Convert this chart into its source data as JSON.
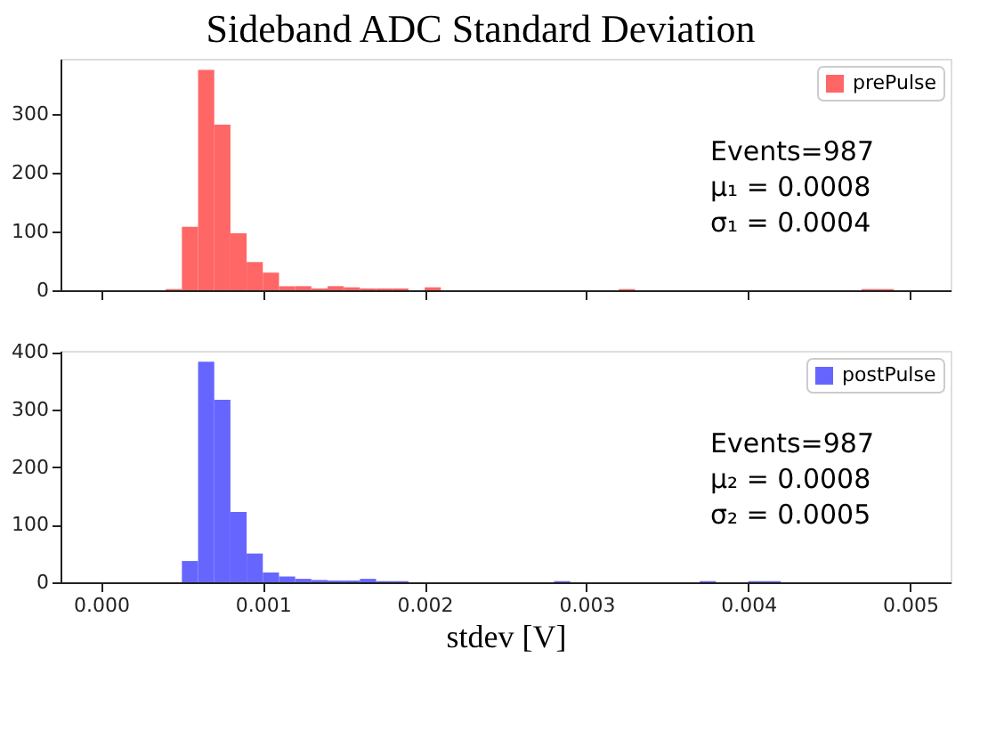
{
  "chart_data": [
    {
      "type": "histogram",
      "title": "Sideband ADC Standard Deviation",
      "bins": [
        0.0,
        0.0001,
        0.0002,
        0.0003,
        0.0004,
        0.0005,
        0.0006,
        0.0007,
        0.0008,
        0.0009,
        0.001,
        0.0011,
        0.0012,
        0.0013,
        0.0014,
        0.0015,
        0.0016,
        0.0017,
        0.0018,
        0.0019,
        0.002,
        0.0021,
        0.0022,
        0.0023,
        0.0024,
        0.0025,
        0.0026,
        0.0027,
        0.0028,
        0.0029,
        0.003,
        0.0031,
        0.0032,
        0.0033,
        0.0034,
        0.0035,
        0.0036,
        0.0037,
        0.0038,
        0.0039,
        0.004,
        0.0041,
        0.0042,
        0.0043,
        0.0044,
        0.0045,
        0.0046,
        0.0047,
        0.0048,
        0.0049,
        0.005
      ],
      "series": [
        {
          "name": "prePulse",
          "color": "#ff6666",
          "values": [
            0,
            0,
            0,
            0,
            2,
            108,
            375,
            282,
            97,
            48,
            30,
            7,
            7,
            3,
            7,
            5,
            3,
            3,
            3,
            0,
            5,
            0,
            0,
            0,
            0,
            0,
            0,
            0,
            0,
            0,
            0,
            0,
            2,
            0,
            0,
            0,
            0,
            0,
            0,
            0,
            0,
            0,
            0,
            0,
            0,
            0,
            0,
            2,
            2,
            0
          ]
        }
      ],
      "xlim": [
        -0.00025,
        0.00525
      ],
      "xticks": [
        {
          "value": 0.0,
          "label": null
        },
        {
          "value": 0.001,
          "label": null
        },
        {
          "value": 0.002,
          "label": null
        },
        {
          "value": 0.003,
          "label": null
        },
        {
          "value": 0.004,
          "label": null
        },
        {
          "value": 0.005,
          "label": null
        }
      ],
      "ylim": [
        0,
        394
      ],
      "yticks": [
        0,
        100,
        200,
        300
      ],
      "tick_labels": "y",
      "legend": "top right",
      "grid": false,
      "annotations": [
        "Events=987",
        "μ₁ = 0.0008",
        "σ₁ = 0.0004"
      ]
    },
    {
      "type": "histogram",
      "xlabel": "stdev [V]",
      "bins": [
        0.0,
        0.0001,
        0.0002,
        0.0003,
        0.0004,
        0.0005,
        0.0006,
        0.0007,
        0.0008,
        0.0009,
        0.001,
        0.0011,
        0.0012,
        0.0013,
        0.0014,
        0.0015,
        0.0016,
        0.0017,
        0.0018,
        0.0019,
        0.002,
        0.0021,
        0.0022,
        0.0023,
        0.0024,
        0.0025,
        0.0026,
        0.0027,
        0.0028,
        0.0029,
        0.003,
        0.0031,
        0.0032,
        0.0033,
        0.0034,
        0.0035,
        0.0036,
        0.0037,
        0.0038,
        0.0039,
        0.004,
        0.0041,
        0.0042,
        0.0043,
        0.0044,
        0.0045,
        0.0046,
        0.0047,
        0.0048,
        0.0049,
        0.005
      ],
      "series": [
        {
          "name": "postPulse",
          "color": "#6666ff",
          "values": [
            0,
            0,
            0,
            0,
            0,
            37,
            383,
            317,
            122,
            50,
            17,
            10,
            6,
            4,
            3,
            3,
            6,
            2,
            2,
            0,
            0,
            0,
            0,
            0,
            0,
            0,
            0,
            0,
            2,
            0,
            0,
            0,
            0,
            0,
            0,
            0,
            0,
            2,
            0,
            0,
            2,
            2,
            0,
            0,
            0,
            0,
            0,
            0,
            0,
            0
          ]
        }
      ],
      "xlim": [
        -0.00025,
        0.00525
      ],
      "xticks": [
        {
          "value": 0.0,
          "label": "0.000"
        },
        {
          "value": 0.001,
          "label": "0.001"
        },
        {
          "value": 0.002,
          "label": "0.002"
        },
        {
          "value": 0.003,
          "label": "0.003"
        },
        {
          "value": 0.004,
          "label": "0.004"
        },
        {
          "value": 0.005,
          "label": "0.005"
        }
      ],
      "ylim": [
        0,
        402
      ],
      "yticks": [
        0,
        100,
        200,
        300,
        400
      ],
      "legend": "top right",
      "grid": false,
      "annotations": [
        "Events=987",
        "μ₂ = 0.0008",
        "σ₂ = 0.0005"
      ]
    }
  ]
}
